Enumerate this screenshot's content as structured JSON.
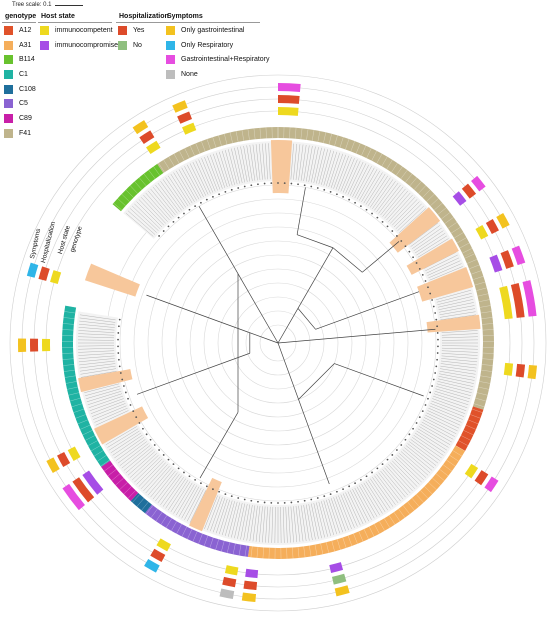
{
  "scale_label": "Tree scale: 0.1",
  "legend": {
    "genotype": {
      "title": "genotype",
      "items": [
        {
          "label": "A12",
          "color": "#e0522a"
        },
        {
          "label": "A31",
          "color": "#f5ae5b"
        },
        {
          "label": "B114",
          "color": "#68c22e"
        },
        {
          "label": "C1",
          "color": "#1fb3a3"
        },
        {
          "label": "C108",
          "color": "#1f6f9c"
        },
        {
          "label": "C5",
          "color": "#8a63d2"
        },
        {
          "label": "C89",
          "color": "#c81fa8"
        },
        {
          "label": "F41",
          "color": "#bfb48c"
        }
      ]
    },
    "host_state": {
      "title": "Host state",
      "items": [
        {
          "label": "immunocompetent",
          "color": "#eed91f"
        },
        {
          "label": "immunocompromised",
          "color": "#a64de6"
        }
      ]
    },
    "hospitalization": {
      "title": "Hospitalization",
      "items": [
        {
          "label": "Yes",
          "color": "#dd4b2a"
        },
        {
          "label": "No",
          "color": "#8fbf7f"
        }
      ]
    },
    "symptoms": {
      "title": "Symptoms",
      "items": [
        {
          "label": "Only gastrointestinal",
          "color": "#f3c21f"
        },
        {
          "label": "Only Respiratory",
          "color": "#2fb5e8"
        },
        {
          "label": "Gastrointestinal+Respiratory",
          "color": "#e64de0"
        },
        {
          "label": "None",
          "color": "#bdbdbd"
        }
      ]
    }
  },
  "ring_labels": {
    "symptoms": "Symptoms",
    "hospitalization": "Hospitalization",
    "host_state": "Host state",
    "genotype": "genotype"
  },
  "colors": {
    "tree_line": "#444444",
    "tip_label": "#999999",
    "highlight": "#f7c79b",
    "circle_grid": "#d9d9d9"
  }
}
